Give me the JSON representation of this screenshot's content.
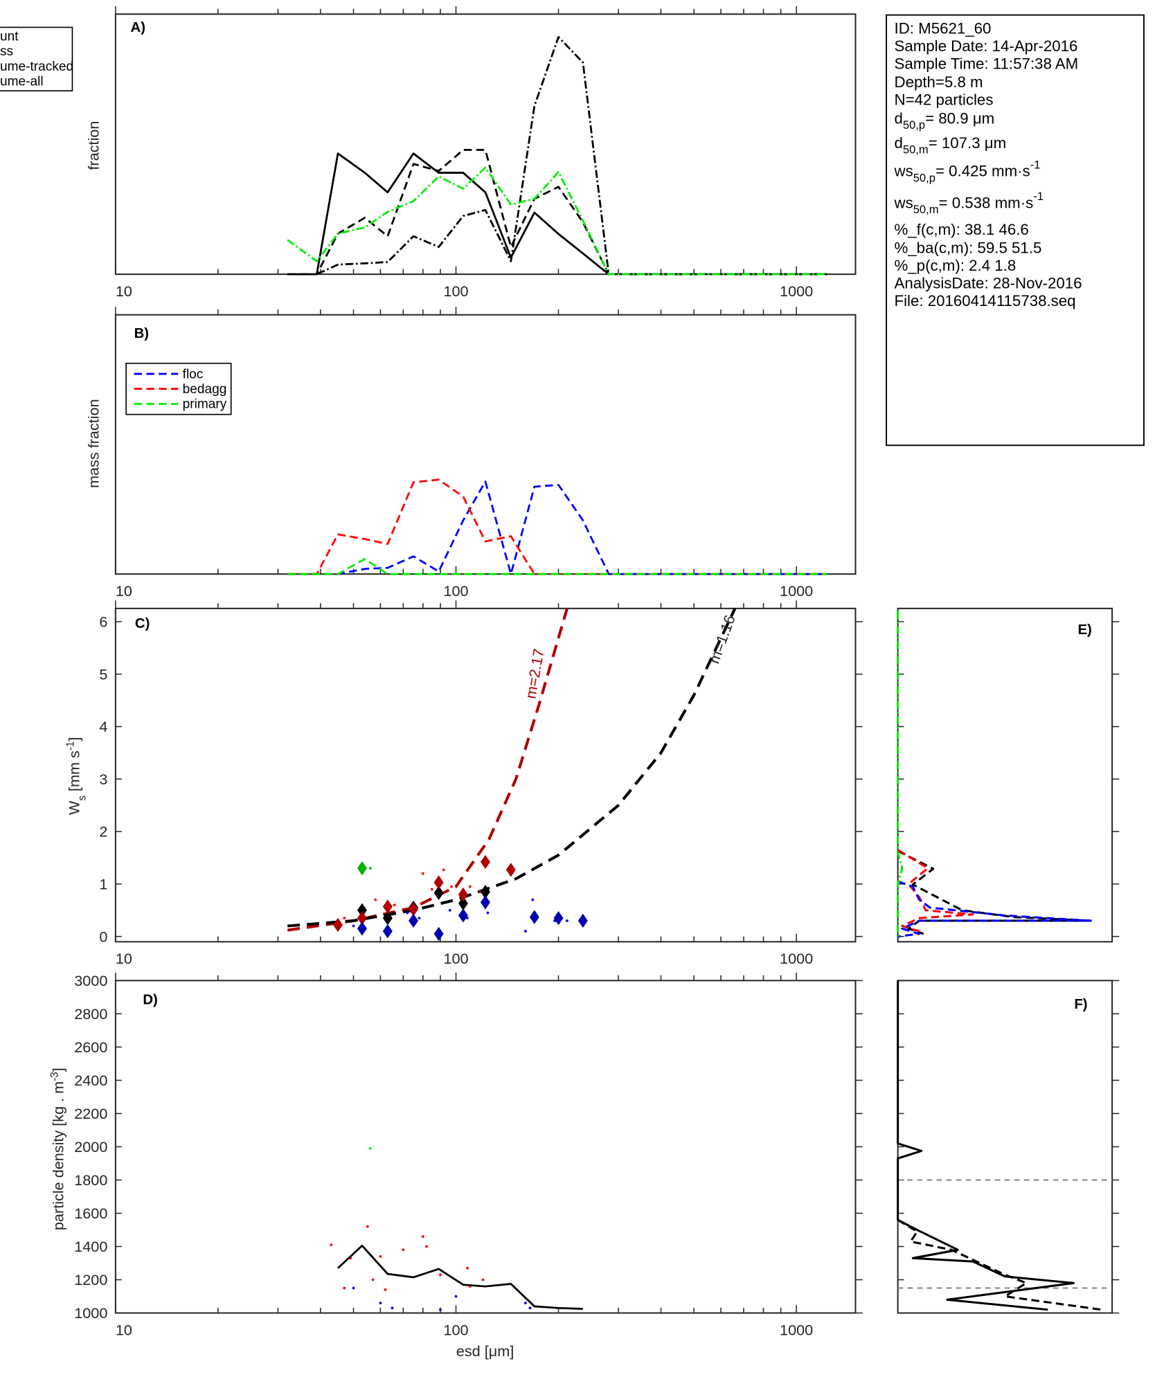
{
  "info_box": {
    "lines": [
      {
        "pre": "ID: M5621_60"
      },
      {
        "pre": "Sample Date: 14-Apr-2016"
      },
      {
        "pre": "Sample Time: 11:57:38 AM"
      },
      {
        "pre": "Depth=5.8 m"
      },
      {
        "pre": "N=42 particles"
      },
      {
        "pre": "d",
        "sub": "50,p",
        "post": "=  80.9 μm"
      },
      {
        "pre": "d",
        "sub": "50,m",
        "post": "= 107.3 μm"
      },
      {
        "pre": "ws",
        "sub": "50,p",
        "post": "= 0.425 mm·s",
        "sup": "-1"
      },
      {
        "pre": "ws",
        "sub": "50,m",
        "post": "= 0.538 mm·s",
        "sup": "-1"
      },
      {
        "pre": "%_f(c,m): 38.1 46.6"
      },
      {
        "pre": "%_ba(c,m): 59.5 51.5"
      },
      {
        "pre": "%_p(c,m): 2.4 1.8"
      },
      {
        "pre": "AnalysisDate: 28-Nov-2016"
      },
      {
        "pre": "File: 20160414115738.seq"
      }
    ]
  },
  "colors": {
    "black": "#000000",
    "red": "#ff0000",
    "blue": "#0000ff",
    "green": "#00ee00",
    "dark_red": "#b00000",
    "dark_blue": "#0000b0",
    "dark_green": "#00b000",
    "gray": "#808080"
  },
  "chart_data": [
    {
      "panel": "A)",
      "type": "line",
      "ylabel": "fraction",
      "xscale": "log",
      "xlim": [
        10,
        1480
      ],
      "ylim": [
        0,
        1
      ],
      "xticks": [
        "10",
        "100",
        "1000"
      ],
      "legend": {
        "placement": "outside-top-left",
        "entries": [
          "unt",
          "ss",
          "ume-tracked",
          "ume-all"
        ]
      },
      "x": [
        32,
        39,
        45,
        54,
        63,
        75,
        89,
        105,
        122,
        145,
        170,
        200,
        236,
        281,
        1230
      ],
      "series": [
        {
          "style": "solid",
          "color": "#000000",
          "values": [
            0,
            0,
            0.464,
            0.39,
            0.315,
            0.464,
            0.39,
            0.39,
            0.315,
            0.064,
            0.237,
            0.155,
            0.08,
            0,
            0
          ]
        },
        {
          "style": "dashed",
          "color": "#000000",
          "values": [
            0,
            0,
            0.156,
            0.217,
            0.146,
            0.424,
            0.397,
            0.478,
            0.478,
            0.105,
            0.29,
            0.336,
            0.2,
            0,
            0
          ]
        },
        {
          "style": "dashdot",
          "color": "#000000",
          "values": [
            0,
            0,
            0.037,
            0.042,
            0.047,
            0.146,
            0.105,
            0.224,
            0.247,
            0.05,
            0.647,
            0.912,
            0.814,
            0,
            0
          ]
        },
        {
          "style": "dashdot",
          "color": "#00ee00",
          "values": [
            0.132,
            0.05,
            0.156,
            0.18,
            0.24,
            0.281,
            0.376,
            0.329,
            0.41,
            0.268,
            0.29,
            0.393,
            0.207,
            0,
            0
          ]
        }
      ]
    },
    {
      "panel": "B)",
      "type": "line",
      "ylabel": "mass fraction",
      "xscale": "log",
      "xlim": [
        10,
        1480
      ],
      "ylim": [
        0,
        1
      ],
      "xticks": [
        "10",
        "100",
        "1000"
      ],
      "legend": {
        "placement": "top-left",
        "entries": [
          "floc",
          "bedagg",
          "primary"
        ]
      },
      "x": [
        32,
        39,
        45,
        54,
        63,
        75,
        89,
        105,
        122,
        145,
        170,
        200,
        236,
        281,
        1230
      ],
      "series": [
        {
          "name": "floc",
          "style": "dashed",
          "color": "#0000ff",
          "values": [
            0,
            0,
            0,
            0.02,
            0.024,
            0.068,
            0.01,
            0.207,
            0.357,
            0,
            0.337,
            0.344,
            0.207,
            0,
            0
          ]
        },
        {
          "name": "bedagg",
          "style": "dashed",
          "color": "#ff0000",
          "values": [
            0,
            0,
            0.153,
            0.135,
            0.116,
            0.354,
            0.364,
            0.299,
            0.126,
            0.146,
            0,
            0,
            0,
            0,
            0
          ]
        },
        {
          "name": "primary",
          "style": "dashed",
          "color": "#00ee00",
          "values": [
            0,
            0,
            0,
            0.058,
            0,
            0,
            0,
            0,
            0,
            0,
            0,
            0,
            0,
            0,
            0
          ]
        }
      ]
    },
    {
      "panel": "C)",
      "type": "scatter",
      "ylabel": {
        "main": "W",
        "sub": "s",
        "unit": " [mm s",
        "sup": "-1",
        "close": "]"
      },
      "xscale": "log",
      "xlim": [
        10,
        1480
      ],
      "ylim": [
        -0.1,
        6.25
      ],
      "xticks": [
        "10",
        "100",
        "1000"
      ],
      "yticks": [
        "0",
        "1",
        "2",
        "3",
        "4",
        "5",
        "6"
      ],
      "fits": [
        {
          "label": "m=2.17",
          "color": "#b00000",
          "x": [
            32,
            50,
            75,
            100,
            125,
            150,
            175,
            212
          ],
          "y": [
            0.12,
            0.3,
            0.55,
            0.95,
            1.85,
            3.0,
            4.4,
            6.25
          ]
        },
        {
          "label": "m=1.16",
          "color": "#000000",
          "x": [
            32,
            50,
            75,
            100,
            150,
            200,
            300,
            400,
            500,
            660
          ],
          "y": [
            0.2,
            0.3,
            0.5,
            0.7,
            1.1,
            1.55,
            2.5,
            3.5,
            4.6,
            6.25
          ]
        }
      ],
      "diamonds": [
        {
          "color": "#000000",
          "x": [
            53,
            63,
            75,
            89,
            105,
            122
          ],
          "y": [
            0.5,
            0.35,
            0.55,
            0.83,
            0.63,
            0.85
          ]
        },
        {
          "color": "#b00000",
          "x": [
            45,
            53,
            63,
            75,
            89,
            105,
            122,
            145
          ],
          "y": [
            0.22,
            0.35,
            0.57,
            0.52,
            1.03,
            0.8,
            1.42,
            1.27
          ]
        },
        {
          "color": "#0000b0",
          "x": [
            53,
            63,
            75,
            89,
            105,
            122,
            170,
            200,
            236
          ],
          "y": [
            0.15,
            0.1,
            0.3,
            0.05,
            0.4,
            0.65,
            0.37,
            0.35,
            0.3
          ]
        },
        {
          "color": "#00b000",
          "x": [
            53
          ],
          "y": [
            1.3
          ]
        }
      ],
      "dots": [
        {
          "color": "#ff0000",
          "x": [
            47,
            58,
            66,
            80,
            85,
            92,
            97,
            110,
            118
          ],
          "y": [
            0.35,
            0.7,
            0.6,
            1.2,
            0.9,
            1.27,
            0.95,
            0.95,
            0.85
          ]
        },
        {
          "color": "#0000ff",
          "x": [
            50,
            72,
            78,
            96,
            108,
            124,
            160,
            168,
            195,
            212
          ],
          "y": [
            0.2,
            0.45,
            0.35,
            0.5,
            0.35,
            0.45,
            0.1,
            0.7,
            0.3,
            0.3
          ]
        },
        {
          "color": "#00b000",
          "x": [
            56
          ],
          "y": [
            1.3
          ]
        }
      ]
    },
    {
      "panel": "D)",
      "type": "scatter",
      "ylabel": {
        "main": "particle density [kg . m",
        "sup": "-3",
        "close": "]"
      },
      "xlabel": "esd [μm]",
      "xscale": "log",
      "xlim": [
        10,
        1480
      ],
      "ylim": [
        1000,
        3000
      ],
      "xticks": [
        "10",
        "100",
        "1000"
      ],
      "yticks": [
        "1000",
        "1200",
        "1400",
        "1600",
        "1800",
        "2000",
        "2200",
        "2400",
        "2600",
        "2800",
        "3000"
      ],
      "line": {
        "color": "#000000",
        "x": [
          45,
          53,
          63,
          75,
          89,
          105,
          122,
          145,
          170,
          200,
          236
        ],
        "y": [
          1270,
          1405,
          1235,
          1215,
          1265,
          1170,
          1160,
          1175,
          1040,
          1030,
          1025
        ]
      },
      "dots": [
        {
          "color": "#ff0000",
          "x": [
            43,
            47,
            49,
            55,
            57,
            60,
            62,
            70,
            80,
            82,
            90,
            108,
            110,
            120
          ],
          "y": [
            1410,
            1150,
            1330,
            1520,
            1200,
            1340,
            1140,
            1380,
            1460,
            1400,
            1230,
            1270,
            1160,
            1200
          ]
        },
        {
          "color": "#0000ff",
          "x": [
            50,
            60,
            65,
            90,
            100,
            160,
            165
          ],
          "y": [
            1150,
            1060,
            1030,
            1020,
            1100,
            1060,
            1030
          ]
        },
        {
          "color": "#00ee00",
          "x": [
            56
          ],
          "y": [
            1990
          ]
        }
      ]
    },
    {
      "panel": "E)",
      "type": "line",
      "orientation": "vertical-profile",
      "ylim": [
        -0.1,
        6.25
      ],
      "xlim": [
        0,
        1
      ],
      "series": [
        {
          "style": "dashed",
          "color": "#000000",
          "x": [
            0,
            0.165,
            0.07,
            0.3,
            0.54,
            0.9,
            0.1,
            0.05,
            0.12
          ],
          "y": [
            1.63,
            1.29,
            0.99,
            0.5,
            0.37,
            0.3,
            0.3,
            0.15,
            0.05
          ]
        },
        {
          "style": "dashed",
          "color": "#ff0000",
          "x": [
            0,
            0.14,
            0.05,
            0.1,
            0.13,
            0.35,
            0.1,
            0.02,
            0.1
          ],
          "y": [
            1.65,
            1.3,
            1.0,
            0.75,
            0.5,
            0.42,
            0.35,
            0.2,
            0.1
          ]
        },
        {
          "style": "dashed",
          "color": "#0000ff",
          "x": [
            0,
            0.07,
            0.1,
            0.15,
            0.5,
            0.9,
            0.1,
            0.02,
            0.1,
            0
          ],
          "y": [
            1.05,
            0.95,
            0.7,
            0.55,
            0.4,
            0.3,
            0.3,
            0.15,
            0.05,
            0
          ]
        },
        {
          "style": "dashdot",
          "color": "#00ee00",
          "x": [
            0,
            0,
            0.02,
            0,
            0
          ],
          "y": [
            6.2,
            1.6,
            1.3,
            1.0,
            0
          ]
        }
      ]
    },
    {
      "panel": "F)",
      "type": "line",
      "orientation": "vertical-profile",
      "ylim": [
        1000,
        3000
      ],
      "xlim": [
        0,
        1
      ],
      "reference_lines": [
        1800,
        1150
      ],
      "series": [
        {
          "style": "solid",
          "color": "#000000",
          "x": [
            0,
            0,
            0.11,
            0,
            0,
            0.09,
            0.28,
            0.07,
            0.35,
            0.5,
            0.82,
            0.23,
            0.7
          ],
          "y": [
            3000,
            2020,
            1975,
            1930,
            1560,
            1500,
            1380,
            1330,
            1310,
            1220,
            1180,
            1080,
            1020
          ]
        },
        {
          "style": "dashed",
          "color": "#000000",
          "x": [
            0,
            0.09,
            0.06,
            0.25,
            0.5,
            0.6,
            0.5,
            0.95
          ],
          "y": [
            1560,
            1490,
            1430,
            1380,
            1230,
            1180,
            1100,
            1020
          ]
        }
      ]
    }
  ]
}
